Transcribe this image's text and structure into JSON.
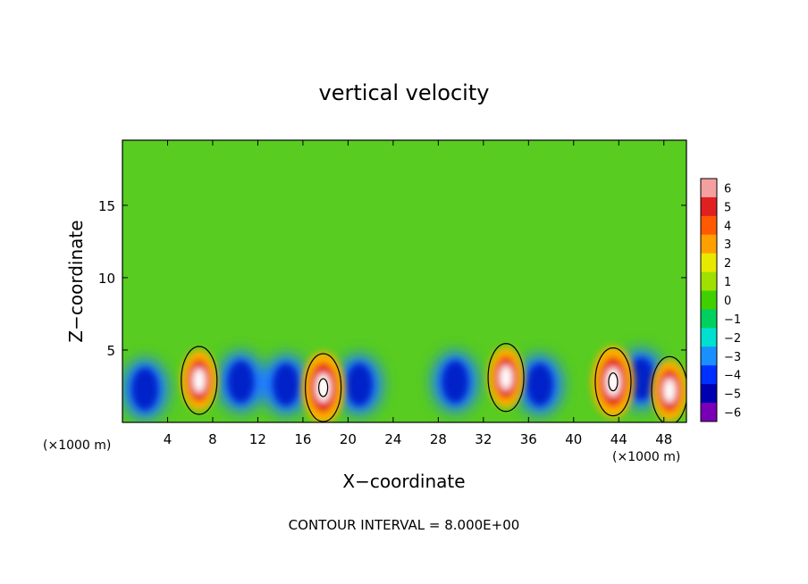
{
  "chart_data": {
    "type": "heatmap",
    "title": "vertical velocity",
    "xlabel": "X−coordinate",
    "ylabel": "Z−coordinate",
    "x_unit_label": "(×1000 m)",
    "y_unit_label": "(×1000 m)",
    "xlim": [
      0,
      50
    ],
    "ylim": [
      0,
      19.5
    ],
    "x_ticks": [
      4,
      8,
      12,
      16,
      20,
      24,
      28,
      32,
      36,
      40,
      44,
      48
    ],
    "y_ticks": [
      5,
      10,
      15
    ],
    "footer": "CONTOUR INTERVAL = 8.000E+00",
    "colorbar": {
      "levels": [
        6,
        5,
        4,
        3,
        2,
        1,
        0,
        -1,
        -2,
        -3,
        -4,
        -5,
        -6
      ],
      "labels": [
        "6",
        "5",
        "4",
        "3",
        "2",
        "1",
        "0",
        "−1",
        "−2",
        "−3",
        "−4",
        "−5",
        "−6"
      ],
      "colors": [
        "#f4a0a0",
        "#e02020",
        "#ff5a00",
        "#ffa000",
        "#e8e800",
        "#a0e000",
        "#40d000",
        "#00d060",
        "#00e0d0",
        "#1a90ff",
        "#0030ff",
        "#0000b0",
        "#7a00b8"
      ]
    },
    "updraft_maxima": [
      {
        "x": 6.8,
        "z": 2.9,
        "w": 6.5
      },
      {
        "x": 17.8,
        "z": 2.4,
        "w": 8.5
      },
      {
        "x": 34.0,
        "z": 3.1,
        "w": 5.5
      },
      {
        "x": 43.5,
        "z": 2.8,
        "w": 8.2
      },
      {
        "x": 48.5,
        "z": 2.2,
        "w": 5.0
      }
    ],
    "downdraft_minima": [
      {
        "x": 2.0,
        "z": 2.3,
        "w": -5.5
      },
      {
        "x": 10.5,
        "z": 2.8,
        "w": -4.5
      },
      {
        "x": 14.5,
        "z": 2.6,
        "w": -4.0
      },
      {
        "x": 21.0,
        "z": 2.6,
        "w": -5.0
      },
      {
        "x": 29.5,
        "z": 2.8,
        "w": -4.0
      },
      {
        "x": 37.0,
        "z": 2.6,
        "w": -5.5
      },
      {
        "x": 46.0,
        "z": 3.0,
        "w": -5.0
      }
    ]
  }
}
